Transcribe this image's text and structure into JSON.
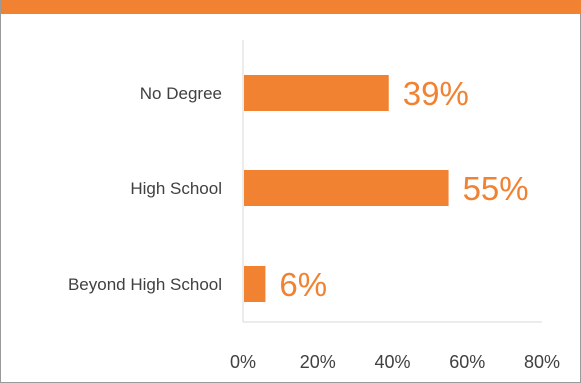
{
  "colors": {
    "accent": "#f08232",
    "axis": "#d9d9d9",
    "text": "#404040"
  },
  "chart_data": {
    "type": "bar",
    "orientation": "horizontal",
    "categories": [
      "No Degree",
      "High School",
      "Beyond High School"
    ],
    "values": [
      39,
      55,
      6
    ],
    "data_labels": [
      "39%",
      "55%",
      "6%"
    ],
    "xlim": [
      0,
      80
    ],
    "x_ticks": [
      0,
      20,
      40,
      60,
      80
    ],
    "x_tick_labels": [
      "0%",
      "20%",
      "40%",
      "60%",
      "80%"
    ],
    "grid": false,
    "legend": "none"
  }
}
